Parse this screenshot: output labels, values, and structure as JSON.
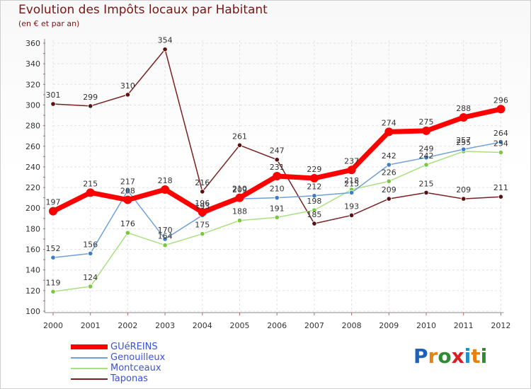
{
  "title": "Evolution des Impôts locaux par Habitant",
  "subtitle": "(en € et par an)",
  "logo": {
    "text": "Proxiti",
    "letter_colors": [
      "#1e5fb8",
      "#e8820e",
      "#2e8b2e",
      "#d62020",
      "#1e8fc8",
      "#e8820e",
      "#2e8b2e"
    ]
  },
  "chart_data": {
    "type": "line",
    "title": "Evolution des Impôts locaux par Habitant",
    "subtitle": "(en € et par an)",
    "xlabel": "",
    "ylabel": "",
    "x": [
      "2000",
      "2001",
      "2002",
      "2003",
      "2004",
      "2005",
      "2006",
      "2007",
      "2008",
      "2009",
      "2010",
      "2011",
      "2012"
    ],
    "ylim": [
      100,
      360
    ],
    "yticks": [
      100,
      120,
      140,
      160,
      180,
      200,
      220,
      240,
      260,
      280,
      300,
      320,
      340,
      360
    ],
    "grid": true,
    "legend_position": "bottom-left",
    "series": [
      {
        "name": "Taponas",
        "color": "#7a2020",
        "marker": "#5a1010",
        "values": [
          301,
          299,
          310,
          354,
          216,
          261,
          247,
          185,
          193,
          209,
          215,
          209,
          211
        ]
      },
      {
        "name": "Montceaux",
        "color": "#a8e080",
        "marker": "#7bc840",
        "values": [
          119,
          124,
          176,
          164,
          175,
          188,
          191,
          198,
          218,
          226,
          242,
          255,
          254
        ]
      },
      {
        "name": "Genouilleux",
        "color": "#6fa0d8",
        "marker": "#3d7cc9",
        "values": [
          152,
          156,
          217,
          170,
          193,
          209,
          210,
          212,
          215,
          242,
          249,
          257,
          264
        ]
      },
      {
        "name": "GUéREINS",
        "color": "#ff0000",
        "marker": "#ff0000",
        "values": [
          197,
          215,
          208,
          218,
          196,
          210,
          231,
          229,
          237,
          274,
          275,
          288,
          296
        ]
      }
    ],
    "legend": [
      "GUéREINS",
      "Genouilleux",
      "Montceaux",
      "Taponas"
    ]
  }
}
